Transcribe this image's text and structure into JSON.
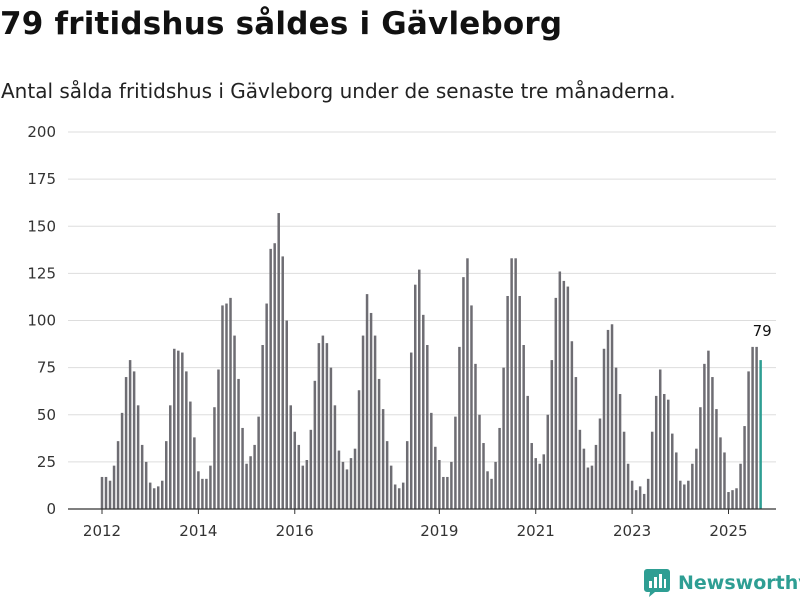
{
  "title": "79 fritidshus såldes i Gävleborg",
  "subtitle": "Antal sålda fritidshus i Gävleborg under de senaste tre månaderna.",
  "brand": {
    "name": "Newsworthy",
    "color": "#2e9e93",
    "icon": "newsworthy-logo-icon"
  },
  "colors": {
    "bar": "#6e6d73",
    "highlight": "#2e9e93",
    "grid": "#dddddd",
    "axis": "#333333"
  },
  "chart_data": {
    "type": "bar",
    "title": "79 fritidshus såldes i Gävleborg",
    "xlabel": "",
    "ylabel": "",
    "ylim": [
      0,
      200
    ],
    "yticks": [
      0,
      25,
      50,
      75,
      100,
      125,
      150,
      175,
      200
    ],
    "grid": true,
    "x_tick_labels": [
      {
        "label": "2012",
        "index": 0
      },
      {
        "label": "2014",
        "index": 24
      },
      {
        "label": "2016",
        "index": 48
      },
      {
        "label": "2019",
        "index": 84
      },
      {
        "label": "2021",
        "index": 108
      },
      {
        "label": "2023",
        "index": 132
      },
      {
        "label": "2025",
        "index": 156
      }
    ],
    "values": [
      17,
      17,
      15,
      23,
      36,
      51,
      70,
      79,
      73,
      55,
      34,
      25,
      14,
      11,
      12,
      15,
      36,
      55,
      85,
      84,
      83,
      73,
      57,
      38,
      20,
      16,
      16,
      23,
      54,
      74,
      108,
      109,
      112,
      92,
      69,
      43,
      24,
      28,
      34,
      49,
      87,
      109,
      138,
      141,
      157,
      134,
      100,
      55,
      41,
      34,
      23,
      26,
      42,
      68,
      88,
      92,
      88,
      75,
      55,
      31,
      25,
      21,
      27,
      32,
      63,
      92,
      114,
      104,
      92,
      69,
      53,
      36,
      23,
      13,
      11,
      14,
      36,
      83,
      119,
      127,
      103,
      87,
      51,
      33,
      26,
      17,
      17,
      25,
      49,
      86,
      123,
      133,
      108,
      77,
      50,
      35,
      20,
      16,
      25,
      43,
      75,
      113,
      133,
      133,
      113,
      87,
      60,
      35,
      27,
      24,
      29,
      50,
      79,
      112,
      126,
      121,
      118,
      89,
      70,
      42,
      32,
      22,
      23,
      34,
      48,
      85,
      95,
      98,
      75,
      61,
      41,
      24,
      15,
      10,
      12,
      8,
      16,
      41,
      60,
      74,
      61,
      58,
      40,
      30,
      15,
      13,
      15,
      24,
      32,
      54,
      77,
      84,
      70,
      53,
      38,
      30,
      9,
      10,
      11,
      24,
      44,
      73,
      86,
      86,
      79
    ],
    "highlight_index": 164,
    "annotation": {
      "index": 164,
      "text": "79"
    }
  }
}
